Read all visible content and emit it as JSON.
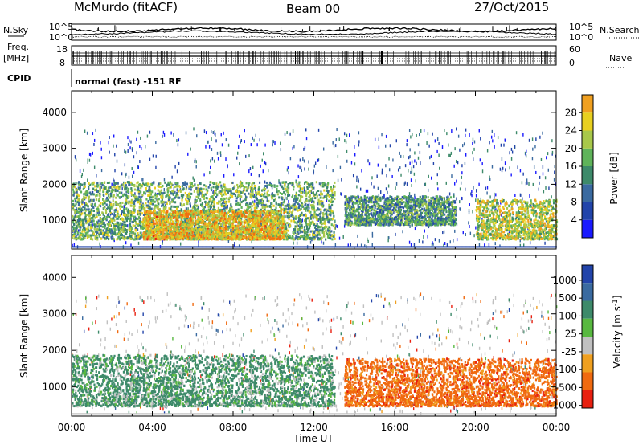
{
  "header": {
    "station": "McMurdo (fitACF)",
    "beam": "Beam 00",
    "date": "27/Oct/2015"
  },
  "side_labels": {
    "nsky": "N.Sky",
    "freq_line1": "Freq.",
    "freq_line2": "[MHz]",
    "cpid": "CPID",
    "nsearch": "N.Search",
    "nave": "Nave"
  },
  "cpid_text": "normal (fast) -151 RF",
  "noise_panel": {
    "left_ticks": [
      "10^5",
      "10^0"
    ],
    "right_ticks": [
      "10^5",
      "10^0"
    ]
  },
  "freq_panel": {
    "left_ticks": [
      "18",
      "8"
    ],
    "right_ticks": [
      "60",
      "0"
    ]
  },
  "x_axis": {
    "label": "Time UT",
    "tick_labels": [
      "00:00",
      "04:00",
      "08:00",
      "12:00",
      "16:00",
      "20:00",
      "00:00"
    ]
  },
  "colors": {
    "scale": [
      "#1a1aff",
      "#2244aa",
      "#3a6aa0",
      "#3d8a6a",
      "#5fb35a",
      "#a8c84a",
      "#e8d020",
      "#f0a020",
      "#f07010",
      "#e82010"
    ],
    "velocity": [
      "#e82010",
      "#f06a10",
      "#f0a020",
      "#c0c0c0",
      "#58b840",
      "#3d8a6a",
      "#3a6aa0",
      "#2244aa"
    ]
  },
  "chart_data": [
    {
      "type": "heatmap",
      "title": "",
      "xlabel": "",
      "ylabel": "Slant Range [km]",
      "xlim": [
        0,
        24
      ],
      "ylim": [
        200,
        4600
      ],
      "y_ticks": [
        "1000",
        "2000",
        "3000",
        "4000"
      ],
      "colorbar": {
        "label": "Power [dB]",
        "ticks": [
          "4",
          "8",
          "12",
          "16",
          "20",
          "24",
          "28"
        ],
        "range": [
          0,
          32
        ]
      },
      "echo_regions": [
        {
          "x_start": 0.0,
          "x_end": 13.0,
          "y_min": 500,
          "y_max": 2100,
          "level": 14
        },
        {
          "x_start": 3.5,
          "x_end": 10.5,
          "y_min": 500,
          "y_max": 1300,
          "level": 22
        },
        {
          "x_start": 13.5,
          "x_end": 19.0,
          "y_min": 900,
          "y_max": 1700,
          "level": 12
        },
        {
          "x_start": 20.0,
          "x_end": 24.0,
          "y_min": 500,
          "y_max": 1600,
          "level": 18
        }
      ]
    },
    {
      "type": "heatmap",
      "title": "",
      "xlabel": "Time UT",
      "ylabel": "Slant Range [km]",
      "xlim": [
        0,
        24
      ],
      "ylim": [
        200,
        4600
      ],
      "y_ticks": [
        "1000",
        "2000",
        "3000",
        "4000"
      ],
      "colorbar": {
        "label": "Velocity [m s^-1]",
        "ticks": [
          "1000",
          "500",
          "100",
          "25",
          "-25",
          "-100",
          "-500",
          "-1000"
        ]
      },
      "echo_regions": [
        {
          "x_start": 0.0,
          "x_end": 13.0,
          "y_min": 500,
          "y_max": 1900,
          "velocity": 100
        },
        {
          "x_start": 13.5,
          "x_end": 24.0,
          "y_min": 500,
          "y_max": 1800,
          "velocity": -200
        }
      ]
    }
  ]
}
